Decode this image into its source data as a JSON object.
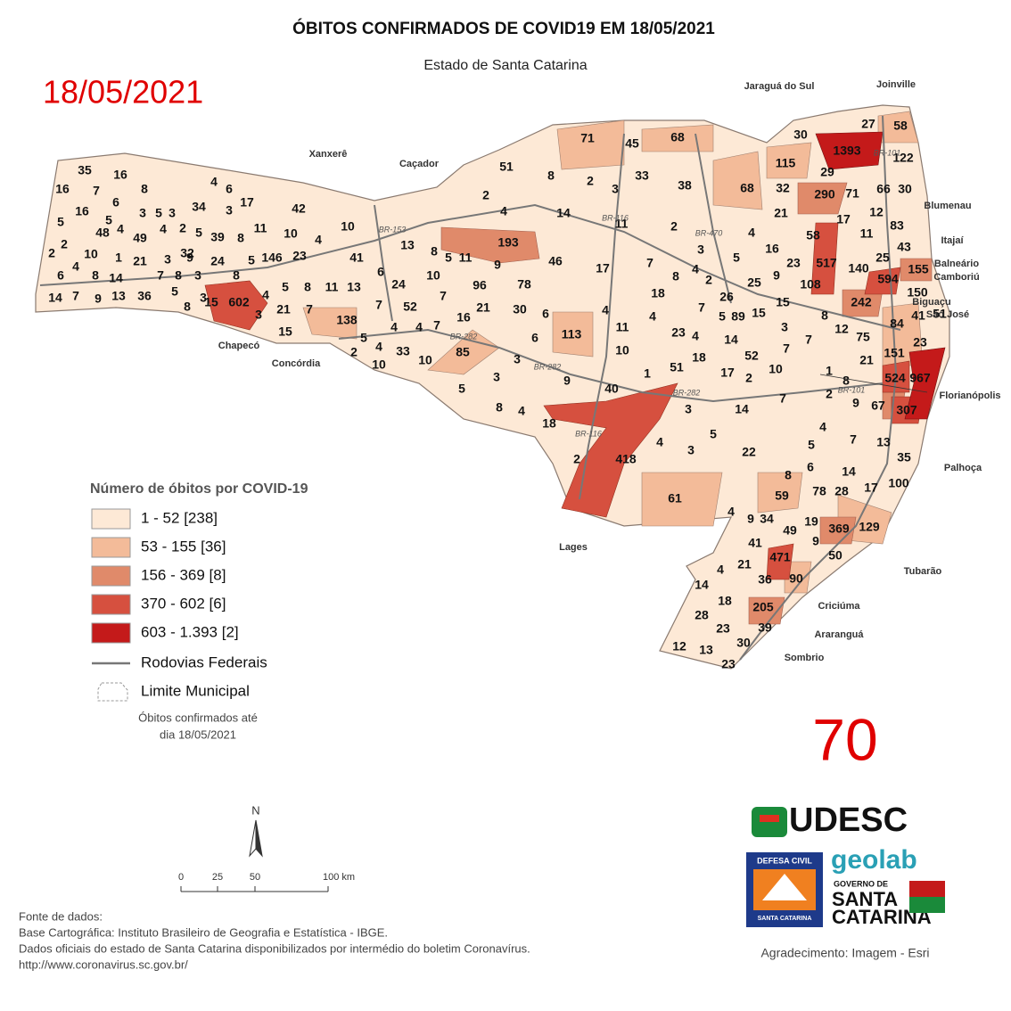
{
  "header": {
    "title": "ÓBITOS CONFIRMADOS DE COVID19 EM 18/05/2021",
    "subtitle": "Estado de Santa Catarina",
    "date": "18/05/2021"
  },
  "map": {
    "labels": [
      35,
      16,
      16,
      7,
      8,
      4,
      6,
      6,
      3,
      5,
      3,
      34,
      3,
      17,
      16,
      5,
      5,
      48,
      4,
      49,
      4,
      2,
      5,
      39,
      8,
      42,
      11,
      10,
      4,
      10,
      2,
      10,
      1,
      21,
      3,
      32,
      5,
      146,
      23,
      41,
      13,
      2,
      4,
      6,
      8,
      14,
      7,
      8,
      3,
      24,
      9,
      14,
      7,
      9,
      13,
      36,
      5,
      8,
      15,
      602,
      3,
      8,
      4,
      5,
      8,
      11,
      13,
      6,
      24,
      21,
      7,
      3,
      15,
      138,
      7,
      52,
      7,
      96,
      4,
      4,
      7,
      2,
      5,
      4,
      33,
      10,
      10,
      85,
      16,
      21,
      30,
      6,
      6,
      113,
      8,
      5,
      11,
      10,
      9,
      78,
      51,
      8,
      2,
      4,
      2,
      3,
      33,
      14,
      193,
      11,
      46,
      17,
      7,
      18,
      8,
      4,
      2,
      26,
      7,
      5,
      89,
      15,
      4,
      4,
      11,
      23,
      4,
      14,
      18,
      17,
      52,
      10,
      10,
      3,
      3,
      9,
      40,
      1,
      51,
      2,
      7,
      3,
      14,
      8,
      4,
      18,
      5,
      4,
      3,
      5,
      22,
      2,
      418,
      61,
      38,
      2,
      3,
      5,
      4,
      16,
      25,
      9,
      23,
      15,
      71,
      45,
      68,
      115,
      32,
      68,
      21,
      30,
      1393,
      27,
      58,
      122,
      29,
      290,
      71,
      66,
      30,
      17,
      12,
      83,
      11,
      43,
      58,
      517,
      25,
      155,
      140,
      108,
      594,
      150,
      242,
      84,
      41,
      51,
      8,
      12,
      75,
      23,
      3,
      7,
      7,
      21,
      151,
      524,
      967,
      8,
      1,
      2,
      9,
      67,
      307,
      4,
      7,
      13,
      5,
      35,
      6,
      14,
      8,
      17,
      100,
      78,
      28,
      59,
      4,
      9,
      34,
      19,
      369,
      129,
      49,
      9,
      41,
      50,
      471,
      4,
      21,
      36,
      90,
      14,
      18,
      205,
      28,
      39,
      23,
      30,
      12,
      13,
      23
    ],
    "cities": [
      "Xanxerê",
      "Caçador",
      "Jaraguá do Sul",
      "Joinville",
      "Blumenau",
      "Itajaí",
      "Balneário",
      "Camboriú",
      "Biguaçu",
      "São José",
      "Florianópolis",
      "Palhoça",
      "Chapecó",
      "Concórdia",
      "Lages",
      "Tubarão",
      "Criciúma",
      "Araranguá",
      "Sombrio"
    ],
    "roads": [
      "BR-153",
      "BR-116",
      "BR-470",
      "BR-101",
      "BR-101",
      "BR-282",
      "BR-282",
      "BR-282",
      "BR-116"
    ]
  },
  "legend": {
    "title": "Número de óbitos por COVID-19",
    "classes": [
      {
        "label": "1 - 52 [238]",
        "color": "#fde9d6"
      },
      {
        "label": "53 - 155 [36]",
        "color": "#f3bb99"
      },
      {
        "label": "156 - 369 [8]",
        "color": "#e08a6a"
      },
      {
        "label": "370 - 602 [6]",
        "color": "#d6503f"
      },
      {
        "label": "603 - 1.393 [2]",
        "color": "#c41a1a"
      }
    ],
    "roads": "Rodovias Federais",
    "boundary": "Limite Municipal",
    "note": [
      "Óbitos confirmados até",
      "dia 18/05/2021"
    ]
  },
  "scale": {
    "north": "N",
    "ticks": [
      "0",
      "25",
      "50",
      "100 km"
    ]
  },
  "counter": "70",
  "logos": {
    "udesc": "UDESC",
    "geolab": "geolab",
    "defesa": "DEFESA CIVIL",
    "defesa_sub": "SANTA CATARINA",
    "gov": [
      "GOVERNO DE",
      "SANTA",
      "CATARINA"
    ]
  },
  "footer": {
    "sources": [
      "Fonte de dados:",
      "Base Cartográfica: Instituto Brasileiro de Geografia e Estatística - IBGE.",
      "Dados oficiais do estado de Santa Catarina disponibilizados por intermédio do boletim Coronavírus.",
      "http://www.coronavirus.sc.gov.br/"
    ],
    "credit": "Agradecimento: Imagem - Esri"
  }
}
